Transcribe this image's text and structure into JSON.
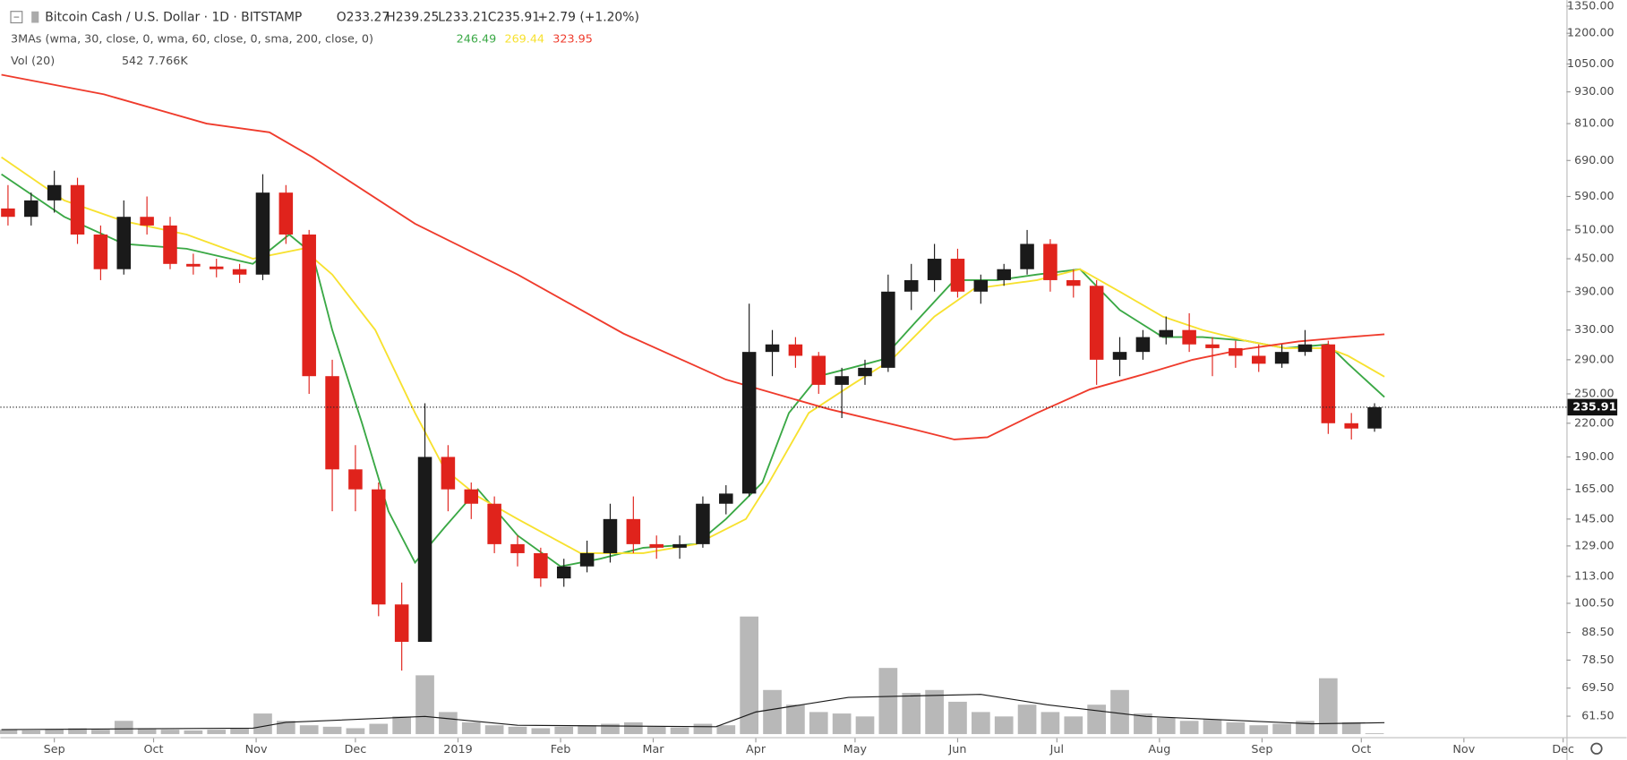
{
  "chart_data": {
    "type": "candlestick",
    "title": "Bitcoin Cash / U.S. Dollar · 1D · BITSTAMP",
    "ohlc_labels": [
      "O233.27",
      "H239.25",
      "L233.21",
      "C235.91"
    ],
    "change": "+2.79 (+1.20%)",
    "indicator": "3MAs (wma, 30, close, 0, wma, 60, close, 0, sma, 200, close, 0)",
    "indicator_values": [
      246.49,
      269.44,
      323.95
    ],
    "volume_title": "Vol (20)",
    "volume_legend": [
      542,
      {
        "value": 7766,
        "label": "7.766K"
      }
    ],
    "up_color": "#1a1a1a",
    "down_color": "#e0231c",
    "x": [
      -14,
      -7,
      0,
      7,
      14,
      21,
      28,
      35,
      42,
      49,
      56,
      63,
      70,
      77,
      84,
      91,
      98,
      105,
      112,
      119,
      126,
      133,
      140,
      147,
      154,
      161,
      168,
      175,
      182,
      189,
      196,
      203,
      210,
      217,
      224,
      231,
      238,
      245,
      252,
      259,
      266,
      273,
      280,
      287,
      294,
      301,
      308,
      315,
      322,
      329,
      336,
      343,
      350,
      357,
      364,
      371,
      378,
      385,
      392,
      399
    ],
    "open": [
      560,
      540,
      580,
      620,
      500,
      430,
      540,
      520,
      440,
      435,
      430,
      420,
      600,
      500,
      270,
      180,
      165,
      100,
      85,
      190,
      165,
      155,
      130,
      125,
      112,
      118,
      125,
      145,
      130,
      128,
      130,
      155,
      162,
      300,
      310,
      295,
      260,
      270,
      280,
      390,
      410,
      450,
      390,
      410,
      430,
      480,
      410,
      400,
      290,
      300,
      320,
      330,
      310,
      305,
      295,
      285,
      300,
      310,
      220,
      215
    ],
    "high": [
      620,
      600,
      660,
      640,
      520,
      580,
      590,
      540,
      460,
      450,
      440,
      650,
      620,
      510,
      290,
      200,
      170,
      110,
      240,
      200,
      170,
      160,
      135,
      128,
      122,
      132,
      155,
      160,
      135,
      135,
      160,
      168,
      370,
      330,
      320,
      300,
      280,
      290,
      420,
      440,
      480,
      470,
      420,
      440,
      510,
      490,
      430,
      410,
      320,
      330,
      350,
      355,
      320,
      315,
      310,
      310,
      330,
      315,
      230,
      240
    ],
    "low": [
      520,
      520,
      550,
      480,
      410,
      420,
      500,
      430,
      420,
      415,
      405,
      410,
      480,
      250,
      150,
      150,
      95,
      75,
      85,
      150,
      145,
      125,
      118,
      108,
      108,
      115,
      120,
      125,
      122,
      122,
      128,
      148,
      160,
      270,
      280,
      250,
      225,
      260,
      275,
      360,
      390,
      380,
      370,
      400,
      420,
      390,
      380,
      260,
      270,
      290,
      310,
      300,
      270,
      280,
      275,
      280,
      295,
      210,
      205,
      212
    ],
    "close": [
      540,
      580,
      620,
      500,
      430,
      540,
      520,
      440,
      435,
      430,
      420,
      600,
      500,
      270,
      180,
      165,
      100,
      85,
      190,
      165,
      155,
      130,
      125,
      112,
      118,
      125,
      145,
      130,
      128,
      130,
      155,
      162,
      300,
      310,
      295,
      260,
      270,
      280,
      390,
      410,
      450,
      390,
      410,
      430,
      480,
      410,
      400,
      290,
      300,
      320,
      330,
      310,
      305,
      295,
      285,
      300,
      310,
      220,
      215,
      235.91
    ],
    "volume": [
      3000,
      2500,
      3500,
      4000,
      3000,
      9000,
      4000,
      3000,
      2500,
      3000,
      4000,
      14000,
      9000,
      6000,
      5000,
      4000,
      7000,
      12000,
      40000,
      15000,
      8000,
      6000,
      5000,
      4000,
      5000,
      6000,
      7000,
      8000,
      5000,
      4500,
      7000,
      6000,
      80000,
      30000,
      20000,
      15000,
      14000,
      12000,
      45000,
      28000,
      30000,
      22000,
      15000,
      12000,
      20000,
      15000,
      12000,
      20000,
      30000,
      14000,
      11000,
      9000,
      10000,
      8000,
      6000,
      7000,
      9000,
      38000,
      8000,
      542
    ],
    "volume_lim": [
      0,
      127000
    ],
    "volume_ma": {
      "color": "#1a1a1a",
      "x": [
        -16,
        60,
        70,
        112,
        140,
        200,
        212,
        240,
        280,
        300,
        330,
        380,
        402
      ],
      "values": [
        3000,
        4000,
        8000,
        12000,
        6000,
        5000,
        15000,
        25000,
        27000,
        20000,
        12000,
        7000,
        7766
      ]
    },
    "series": [
      {
        "name": "wma 30",
        "color": "#3aa845",
        "x": [
          -16,
          3,
          21,
          40,
          60,
          71,
          78,
          84,
          93,
          101,
          109,
          118,
          128,
          140,
          153,
          165,
          178,
          194,
          203,
          214,
          222,
          231,
          241,
          250,
          260,
          272,
          285,
          297,
          310,
          322,
          335,
          347,
          360,
          372,
          385,
          391,
          402
        ],
        "values": [
          650,
          540,
          480,
          470,
          440,
          500,
          460,
          330,
          220,
          150,
          120,
          140,
          165,
          135,
          118,
          122,
          128,
          130,
          145,
          170,
          230,
          270,
          280,
          290,
          340,
          410,
          410,
          420,
          430,
          360,
          320,
          320,
          315,
          305,
          310,
          285,
          246.49
        ]
      },
      {
        "name": "wma 60",
        "color": "#f7e12f",
        "x": [
          -16,
          3,
          21,
          40,
          60,
          75,
          84,
          97,
          109,
          118,
          128,
          140,
          159,
          178,
          194,
          209,
          216,
          228,
          241,
          253,
          266,
          278,
          297,
          310,
          322,
          335,
          347,
          360,
          372,
          385,
          391,
          402
        ],
        "values": [
          700,
          580,
          530,
          500,
          450,
          470,
          420,
          330,
          230,
          180,
          160,
          145,
          125,
          125,
          130,
          145,
          170,
          230,
          260,
          290,
          350,
          395,
          410,
          430,
          390,
          350,
          330,
          315,
          305,
          305,
          295,
          269.44
        ]
      },
      {
        "name": "sma 200",
        "color": "#ef3b2c",
        "x": [
          -16,
          15,
          46,
          65,
          78,
          109,
          140,
          172,
          203,
          234,
          260,
          272,
          282,
          297,
          313,
          329,
          344,
          360,
          376,
          391,
          402
        ],
        "values": [
          1002,
          920,
          810,
          780,
          700,
          524,
          420,
          325,
          266,
          234,
          214,
          205,
          207,
          230,
          255,
          272,
          290,
          304,
          314,
          320,
          323.95
        ]
      }
    ],
    "last_price": 235.91,
    "xlim": [
      -16.3,
      457
    ],
    "ylim": [
      56.9,
      1387
    ],
    "log_y": true,
    "grid": false,
    "yticks": [
      {
        "value": 1350,
        "label": "1350.00"
      },
      {
        "value": 1200,
        "label": "1200.00"
      },
      {
        "value": 1050,
        "label": "1050.00"
      },
      {
        "value": 930,
        "label": "930.00"
      },
      {
        "value": 810,
        "label": "810.00"
      },
      {
        "value": 690,
        "label": "690.00"
      },
      {
        "value": 590,
        "label": "590.00"
      },
      {
        "value": 510,
        "label": "510.00"
      },
      {
        "value": 450,
        "label": "450.00"
      },
      {
        "value": 390,
        "label": "390.00"
      },
      {
        "value": 330,
        "label": "330.00"
      },
      {
        "value": 290,
        "label": "290.00"
      },
      {
        "value": 250,
        "label": "250.00"
      },
      {
        "value": 220,
        "label": "220.00"
      },
      {
        "value": 190,
        "label": "190.00"
      },
      {
        "value": 165,
        "label": "165.00"
      },
      {
        "value": 145,
        "label": "145.00"
      },
      {
        "value": 129,
        "label": "129.00"
      },
      {
        "value": 113,
        "label": "113.00"
      },
      {
        "value": 100.5,
        "label": "100.50"
      },
      {
        "value": 88.5,
        "label": "88.50"
      },
      {
        "value": 78.5,
        "label": "78.50"
      },
      {
        "value": 69.5,
        "label": "69.50"
      },
      {
        "value": 61.5,
        "label": "61.50"
      }
    ],
    "xticks": [
      {
        "value": 0,
        "label": "Sep"
      },
      {
        "value": 30,
        "label": "Oct"
      },
      {
        "value": 61,
        "label": "Nov"
      },
      {
        "value": 91,
        "label": "Dec"
      },
      {
        "value": 122,
        "label": "2019"
      },
      {
        "value": 153,
        "label": "Feb"
      },
      {
        "value": 181,
        "label": "Mar"
      },
      {
        "value": 212,
        "label": "Apr"
      },
      {
        "value": 242,
        "label": "May"
      },
      {
        "value": 273,
        "label": "Jun"
      },
      {
        "value": 303,
        "label": "Jul"
      },
      {
        "value": 334,
        "label": "Aug"
      },
      {
        "value": 365,
        "label": "Sep"
      },
      {
        "value": 395,
        "label": "Oct"
      },
      {
        "value": 426,
        "label": "Nov"
      },
      {
        "value": 456,
        "label": "Dec"
      }
    ]
  }
}
